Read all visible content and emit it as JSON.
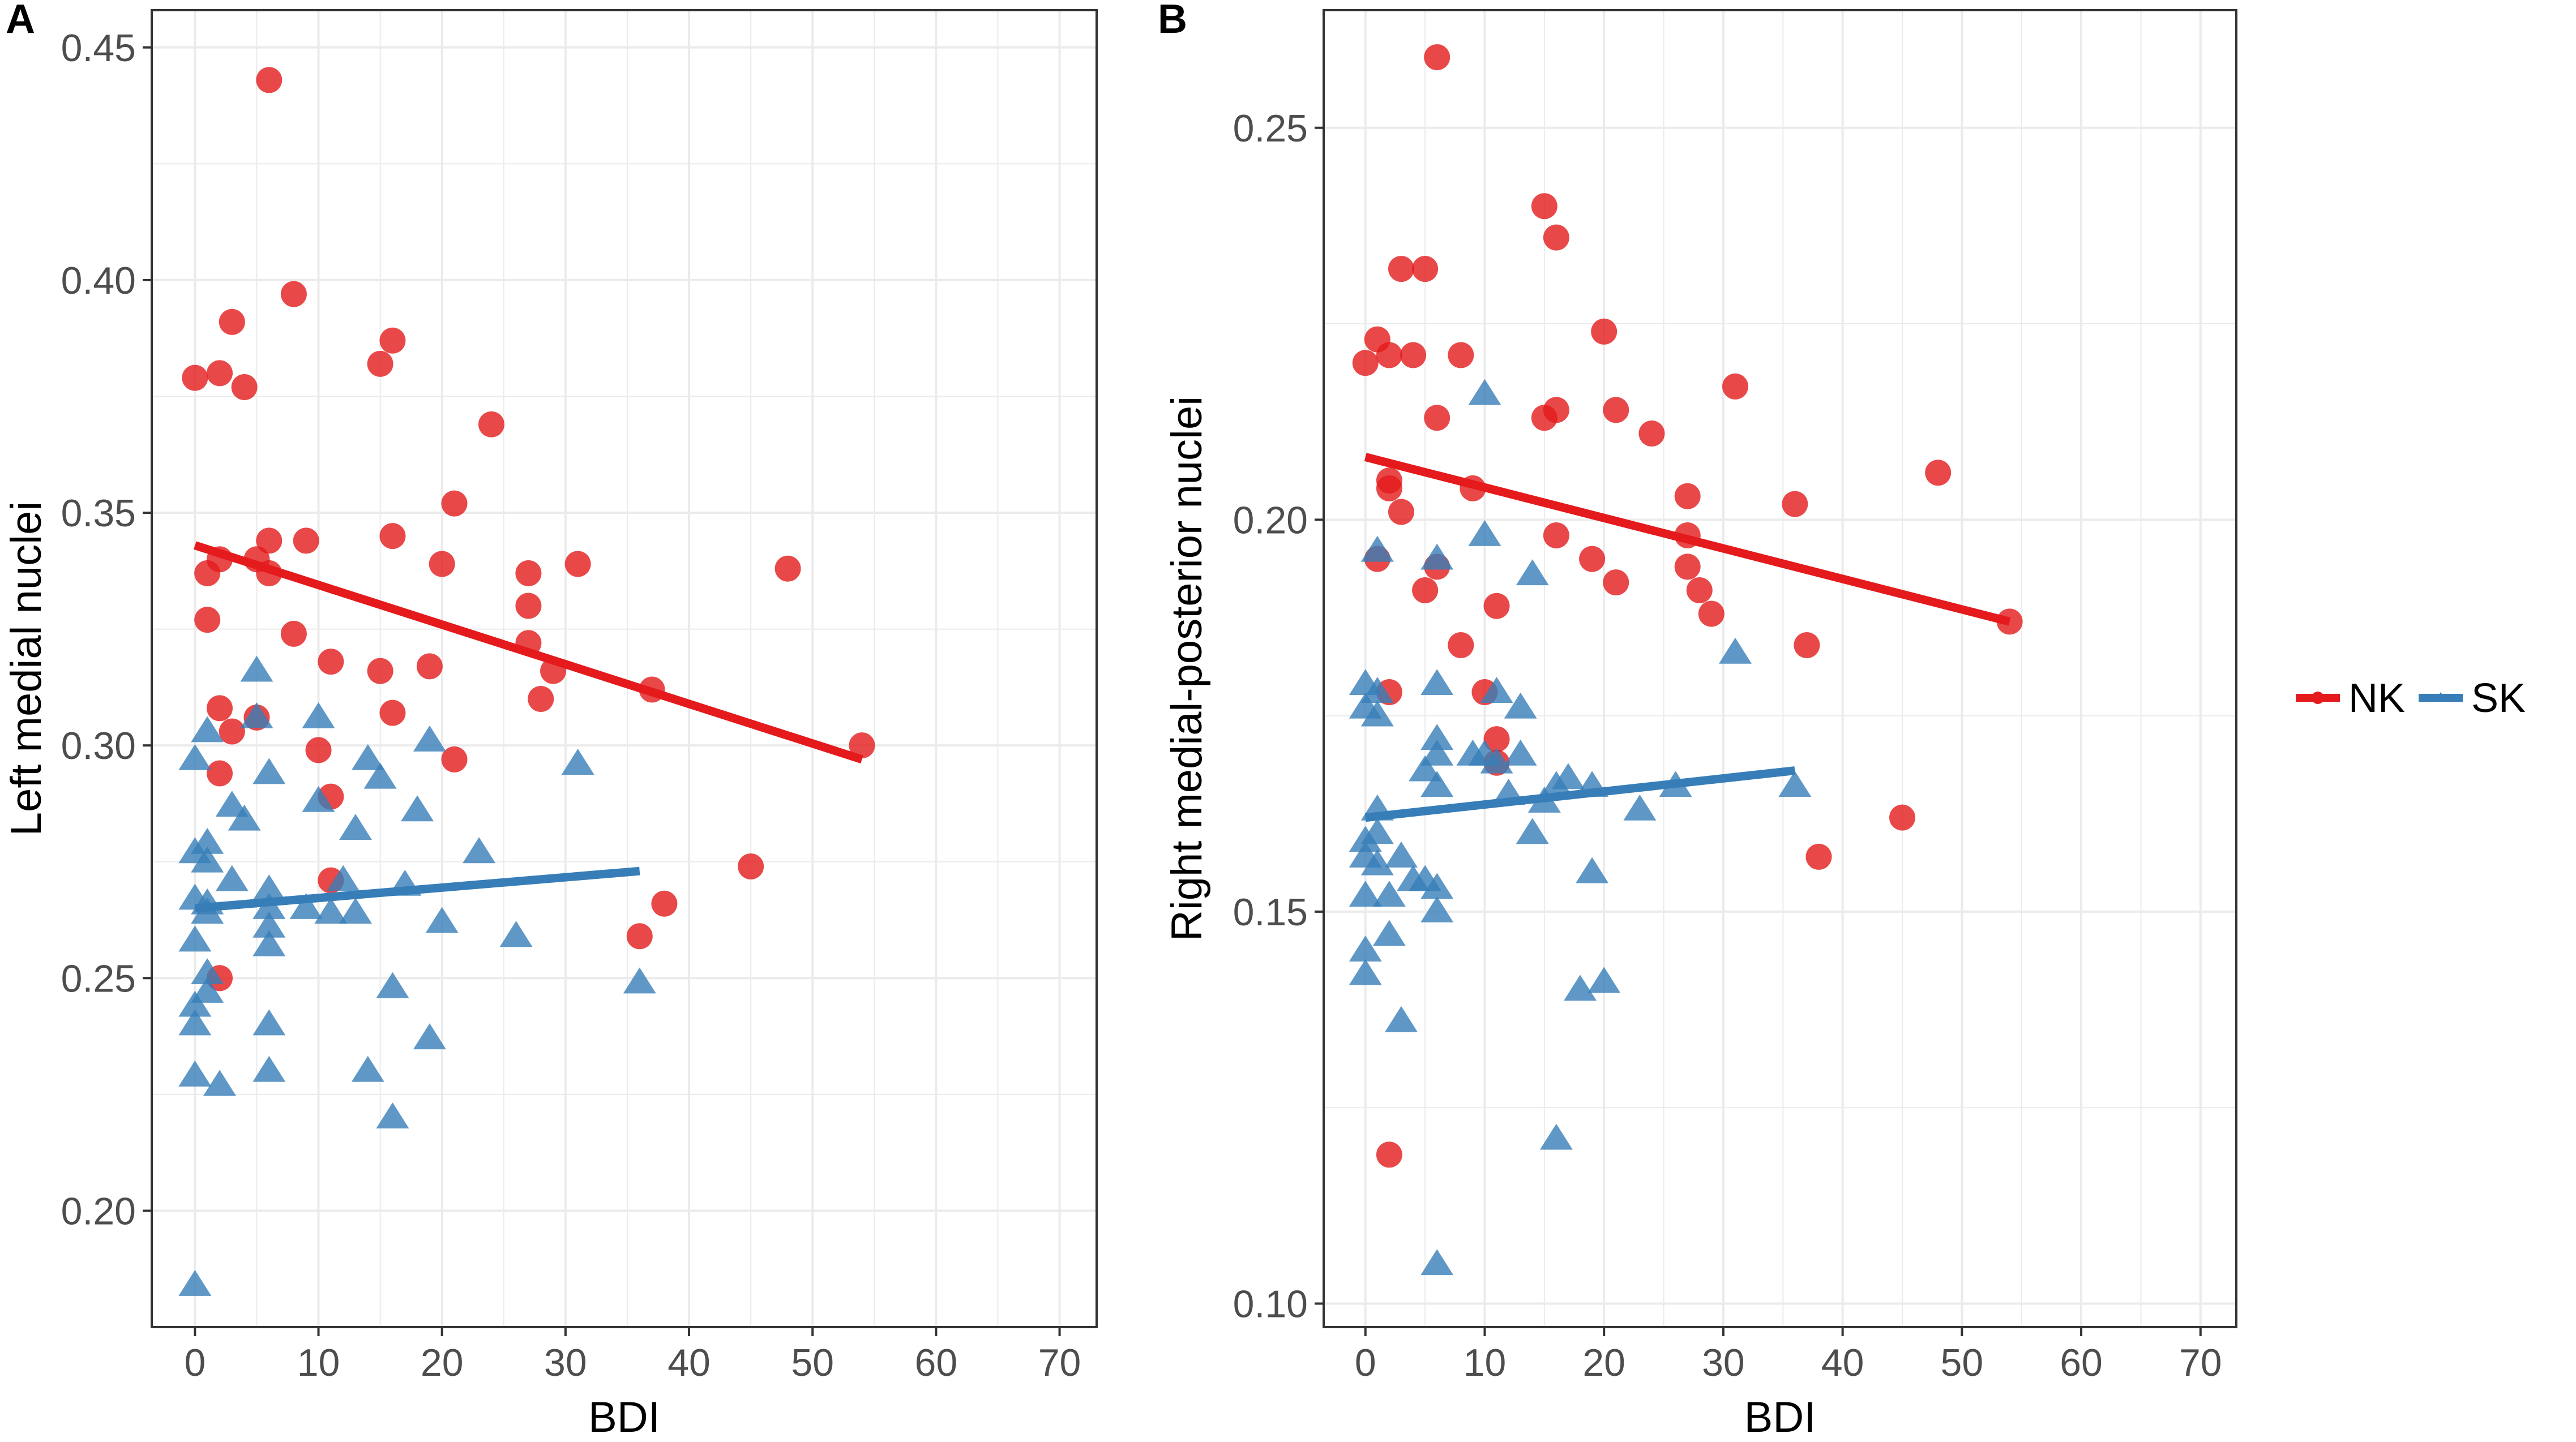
{
  "colors": {
    "NK": "#E41A1C",
    "SK": "#377EB8",
    "grid": "#ebebeb",
    "panel_border": "#333333"
  },
  "legend": {
    "items": [
      {
        "label": "NK",
        "color": "#E41A1C"
      },
      {
        "label": "SK",
        "color": "#377EB8"
      }
    ],
    "position": "right"
  },
  "chart_data": [
    {
      "panel": "A",
      "type": "scatter",
      "title": "",
      "xlabel": "BDI",
      "ylabel": "Left medial nuclei",
      "xlim": [
        -3.5,
        73
      ],
      "ylim": [
        0.175,
        0.458
      ],
      "xticks": [
        0,
        10,
        20,
        30,
        40,
        50,
        60,
        70
      ],
      "yticks": [
        0.2,
        0.25,
        0.3,
        0.35,
        0.4,
        0.45
      ],
      "ytick_labels": [
        "0.20",
        "0.25",
        "0.30",
        "0.35",
        "0.40",
        "0.45"
      ],
      "grid": true,
      "series": [
        {
          "name": "NK",
          "marker": "circle",
          "points": [
            [
              6,
              0.443
            ],
            [
              3,
              0.391
            ],
            [
              8,
              0.397
            ],
            [
              0,
              0.379
            ],
            [
              2,
              0.38
            ],
            [
              4,
              0.377
            ],
            [
              15,
              0.382
            ],
            [
              16,
              0.387
            ],
            [
              24,
              0.369
            ],
            [
              21,
              0.352
            ],
            [
              6,
              0.344
            ],
            [
              9,
              0.344
            ],
            [
              16,
              0.345
            ],
            [
              1,
              0.337
            ],
            [
              2,
              0.34
            ],
            [
              5,
              0.34
            ],
            [
              6,
              0.337
            ],
            [
              20,
              0.339
            ],
            [
              27,
              0.337
            ],
            [
              31,
              0.339
            ],
            [
              48,
              0.338
            ],
            [
              1,
              0.327
            ],
            [
              8,
              0.324
            ],
            [
              27,
              0.33
            ],
            [
              27,
              0.322
            ],
            [
              11,
              0.318
            ],
            [
              15,
              0.316
            ],
            [
              19,
              0.317
            ],
            [
              29,
              0.316
            ],
            [
              37,
              0.312
            ],
            [
              28,
              0.31
            ],
            [
              2,
              0.308
            ],
            [
              3,
              0.303
            ],
            [
              5,
              0.306
            ],
            [
              16,
              0.307
            ],
            [
              10,
              0.299
            ],
            [
              2,
              0.294
            ],
            [
              11,
              0.289
            ],
            [
              21,
              0.297
            ],
            [
              54,
              0.3
            ],
            [
              11,
              0.271
            ],
            [
              45,
              0.274
            ],
            [
              38,
              0.266
            ],
            [
              36,
              0.259
            ],
            [
              2,
              0.25
            ]
          ],
          "trend": {
            "x": [
              0,
              54
            ],
            "y": [
              0.343,
              0.297
            ]
          }
        },
        {
          "name": "SK",
          "marker": "triangle",
          "points": [
            [
              5,
              0.316
            ],
            [
              1,
              0.303
            ],
            [
              0,
              0.297
            ],
            [
              5,
              0.306
            ],
            [
              10,
              0.306
            ],
            [
              6,
              0.294
            ],
            [
              14,
              0.297
            ],
            [
              15,
              0.293
            ],
            [
              19,
              0.301
            ],
            [
              31,
              0.296
            ],
            [
              10,
              0.288
            ],
            [
              3,
              0.287
            ],
            [
              4,
              0.284
            ],
            [
              13,
              0.282
            ],
            [
              18,
              0.286
            ],
            [
              1,
              0.279
            ],
            [
              0,
              0.277
            ],
            [
              1,
              0.275
            ],
            [
              3,
              0.271
            ],
            [
              23,
              0.277
            ],
            [
              12,
              0.271
            ],
            [
              17,
              0.27
            ],
            [
              6,
              0.269
            ],
            [
              0,
              0.267
            ],
            [
              1,
              0.266
            ],
            [
              1,
              0.264
            ],
            [
              6,
              0.265
            ],
            [
              9,
              0.265
            ],
            [
              11,
              0.264
            ],
            [
              13,
              0.264
            ],
            [
              6,
              0.261
            ],
            [
              6,
              0.257
            ],
            [
              20,
              0.262
            ],
            [
              26,
              0.259
            ],
            [
              0,
              0.258
            ],
            [
              1,
              0.251
            ],
            [
              1,
              0.247
            ],
            [
              0,
              0.244
            ],
            [
              0,
              0.24
            ],
            [
              6,
              0.24
            ],
            [
              16,
              0.248
            ],
            [
              19,
              0.237
            ],
            [
              36,
              0.249
            ],
            [
              0,
              0.229
            ],
            [
              2,
              0.227
            ],
            [
              6,
              0.23
            ],
            [
              14,
              0.23
            ],
            [
              16,
              0.22
            ],
            [
              0,
              0.184
            ]
          ],
          "trend": {
            "x": [
              0,
              36
            ],
            "y": [
              0.265,
              0.273
            ]
          }
        }
      ]
    },
    {
      "panel": "B",
      "type": "scatter",
      "title": "",
      "xlabel": "BDI",
      "ylabel": "Right medial-posterior nuclei",
      "xlim": [
        -3.5,
        73
      ],
      "ylim": [
        0.097,
        0.265
      ],
      "xticks": [
        0,
        10,
        20,
        30,
        40,
        50,
        60,
        70
      ],
      "yticks": [
        0.1,
        0.15,
        0.2,
        0.25
      ],
      "ytick_labels": [
        "0.10",
        "0.15",
        "0.20",
        "0.25"
      ],
      "grid": true,
      "series": [
        {
          "name": "NK",
          "marker": "circle",
          "points": [
            [
              6,
              0.259
            ],
            [
              15,
              0.24
            ],
            [
              16,
              0.236
            ],
            [
              3,
              0.232
            ],
            [
              5,
              0.232
            ],
            [
              1,
              0.223
            ],
            [
              0,
              0.22
            ],
            [
              2,
              0.221
            ],
            [
              4,
              0.221
            ],
            [
              8,
              0.221
            ],
            [
              20,
              0.224
            ],
            [
              31,
              0.217
            ],
            [
              6,
              0.213
            ],
            [
              15,
              0.213
            ],
            [
              16,
              0.214
            ],
            [
              21,
              0.214
            ],
            [
              24,
              0.211
            ],
            [
              48,
              0.206
            ],
            [
              2,
              0.205
            ],
            [
              2,
              0.204
            ],
            [
              3,
              0.201
            ],
            [
              9,
              0.204
            ],
            [
              27,
              0.203
            ],
            [
              36,
              0.202
            ],
            [
              16,
              0.198
            ],
            [
              27,
              0.198
            ],
            [
              1,
              0.195
            ],
            [
              6,
              0.194
            ],
            [
              19,
              0.195
            ],
            [
              27,
              0.194
            ],
            [
              5,
              0.191
            ],
            [
              21,
              0.192
            ],
            [
              28,
              0.191
            ],
            [
              11,
              0.189
            ],
            [
              29,
              0.188
            ],
            [
              8,
              0.184
            ],
            [
              37,
              0.184
            ],
            [
              54,
              0.187
            ],
            [
              2,
              0.178
            ],
            [
              10,
              0.178
            ],
            [
              11,
              0.172
            ],
            [
              11,
              0.169
            ],
            [
              45,
              0.162
            ],
            [
              38,
              0.157
            ],
            [
              2,
              0.119
            ]
          ],
          "trend": {
            "x": [
              0,
              54
            ],
            "y": [
              0.208,
              0.187
            ]
          }
        },
        {
          "name": "SK",
          "marker": "triangle",
          "points": [
            [
              10,
              0.216
            ],
            [
              1,
              0.196
            ],
            [
              10,
              0.198
            ],
            [
              6,
              0.195
            ],
            [
              14,
              0.193
            ],
            [
              31,
              0.183
            ],
            [
              0,
              0.179
            ],
            [
              1,
              0.178
            ],
            [
              6,
              0.179
            ],
            [
              0,
              0.176
            ],
            [
              1,
              0.175
            ],
            [
              11,
              0.178
            ],
            [
              13,
              0.176
            ],
            [
              6,
              0.172
            ],
            [
              6,
              0.17
            ],
            [
              10,
              0.17
            ],
            [
              11,
              0.169
            ],
            [
              13,
              0.17
            ],
            [
              9,
              0.17
            ],
            [
              5,
              0.168
            ],
            [
              17,
              0.167
            ],
            [
              19,
              0.166
            ],
            [
              15,
              0.164
            ],
            [
              6,
              0.166
            ],
            [
              16,
              0.166
            ],
            [
              26,
              0.166
            ],
            [
              36,
              0.166
            ],
            [
              1,
              0.163
            ],
            [
              12,
              0.165
            ],
            [
              1,
              0.16
            ],
            [
              23,
              0.163
            ],
            [
              14,
              0.16
            ],
            [
              0,
              0.159
            ],
            [
              0,
              0.157
            ],
            [
              3,
              0.157
            ],
            [
              1,
              0.156
            ],
            [
              4,
              0.154
            ],
            [
              5,
              0.154
            ],
            [
              0,
              0.152
            ],
            [
              2,
              0.152
            ],
            [
              6,
              0.153
            ],
            [
              6,
              0.15
            ],
            [
              19,
              0.155
            ],
            [
              2,
              0.147
            ],
            [
              0,
              0.145
            ],
            [
              0,
              0.142
            ],
            [
              18,
              0.14
            ],
            [
              20,
              0.141
            ],
            [
              3,
              0.136
            ],
            [
              16,
              0.121
            ],
            [
              6,
              0.105
            ]
          ],
          "trend": {
            "x": [
              0,
              36
            ],
            "y": [
              0.162,
              0.168
            ]
          }
        }
      ]
    }
  ]
}
